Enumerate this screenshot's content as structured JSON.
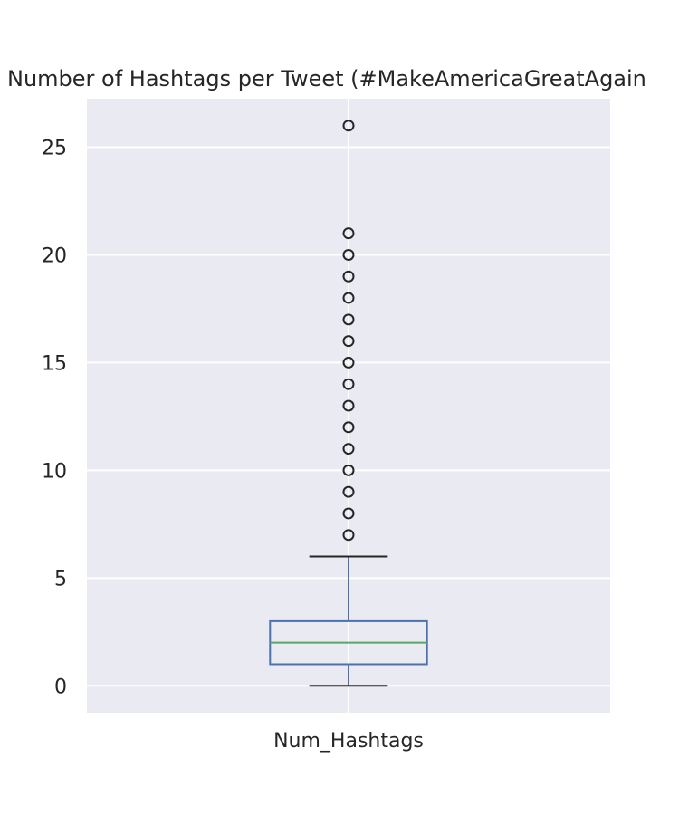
{
  "chart_data": {
    "type": "box",
    "title": "Number of Hashtags per Tweet (#MakeAmericaGreatAgain",
    "xlabel": "",
    "ylabel": "",
    "categories": [
      "Num_Hashtags"
    ],
    "ylim": [
      -1.25,
      27.25
    ],
    "yticks": [
      0,
      5,
      10,
      15,
      20,
      25
    ],
    "grid": true,
    "boxes": [
      {
        "name": "Num_Hashtags",
        "whisker_low": 0,
        "q1": 1,
        "median": 2,
        "q3": 3,
        "whisker_high": 6,
        "outliers": [
          7,
          8,
          9,
          10,
          11,
          12,
          13,
          14,
          15,
          16,
          17,
          18,
          19,
          20,
          21,
          26
        ]
      }
    ],
    "colors": {
      "background": "#eaeaf2",
      "grid": "#ffffff",
      "box": "#4c72b0",
      "median": "#55a868",
      "whisker_cap": "#262626",
      "outlier": "#262626"
    }
  }
}
